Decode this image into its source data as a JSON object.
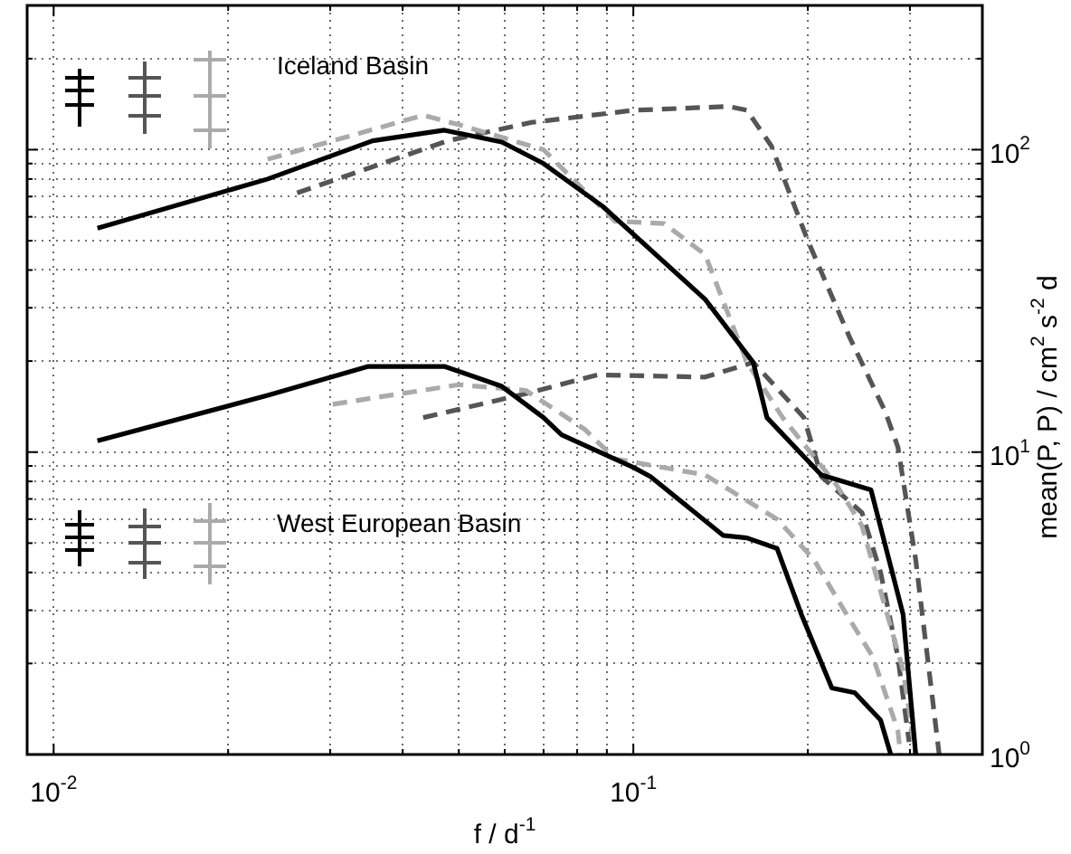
{
  "chart_data": {
    "type": "line",
    "xlabel": "f / d$^{-1}$",
    "ylabel": "mean(P, P) / cm$^{2}$ s$^{-2}$ d",
    "log": "xy",
    "grid": true,
    "legend": false,
    "xlim": [
      0.009,
      0.4
    ],
    "ylim": [
      1,
      300
    ],
    "xticks": [
      {
        "value": 0.01,
        "label": "10$^{-2}$"
      },
      {
        "value": 0.02,
        "label": null
      },
      {
        "value": 0.03,
        "label": null
      },
      {
        "value": 0.04,
        "label": null
      },
      {
        "value": 0.05,
        "label": null
      },
      {
        "value": 0.06,
        "label": null
      },
      {
        "value": 0.07,
        "label": null
      },
      {
        "value": 0.08,
        "label": null
      },
      {
        "value": 0.09,
        "label": null
      },
      {
        "value": 0.1,
        "label": "10$^{-1}$"
      },
      {
        "value": 0.2,
        "label": null
      },
      {
        "value": 0.3,
        "label": null
      }
    ],
    "yticks": [
      {
        "value": 1,
        "label": "10$^{0}$"
      },
      {
        "value": 2,
        "label": null
      },
      {
        "value": 3,
        "label": null
      },
      {
        "value": 4,
        "label": null
      },
      {
        "value": 5,
        "label": null
      },
      {
        "value": 6,
        "label": null
      },
      {
        "value": 7,
        "label": null
      },
      {
        "value": 8,
        "label": null
      },
      {
        "value": 9,
        "label": null
      },
      {
        "value": 10,
        "label": "10$^{1}$"
      },
      {
        "value": 20,
        "label": null
      },
      {
        "value": 30,
        "label": null
      },
      {
        "value": 40,
        "label": null
      },
      {
        "value": 50,
        "label": null
      },
      {
        "value": 60,
        "label": null
      },
      {
        "value": 70,
        "label": null
      },
      {
        "value": 80,
        "label": null
      },
      {
        "value": 90,
        "label": null
      },
      {
        "value": 100,
        "label": "10$^{2}$"
      },
      {
        "value": 200,
        "label": null
      }
    ],
    "series": [
      {
        "color": "#000000",
        "line_style": "solid",
        "x": [
          0.0119,
          0.0234,
          0.0355,
          0.0472,
          0.0593,
          0.07,
          0.0885,
          0.133,
          0.161,
          0.17,
          0.211,
          0.257,
          0.292,
          0.307
        ],
        "values": [
          55,
          80,
          107,
          116,
          106,
          90,
          65,
          32,
          19.8,
          13,
          8.4,
          7.5,
          2.9,
          1
        ]
      },
      {
        "color": "#aaaaaa",
        "line_style": "dashed",
        "x": [
          0.0234,
          0.0434,
          0.05,
          0.07,
          0.093,
          0.113,
          0.133,
          0.157,
          0.181,
          0.224,
          0.248,
          0.292,
          0.307
        ],
        "values": [
          93,
          130,
          121,
          100,
          58,
          57,
          45,
          19.8,
          13,
          7.8,
          5.7,
          1.9,
          1
        ]
      },
      {
        "color": "#555555",
        "line_style": "dashed",
        "x": [
          0.0263,
          0.0478,
          0.0665,
          0.1,
          0.146,
          0.157,
          0.173,
          0.2,
          0.236,
          0.272,
          0.286,
          0.307,
          0.337
        ],
        "values": [
          72,
          107,
          123,
          135,
          139,
          135,
          103,
          50,
          24,
          13.6,
          10.4,
          4.4,
          1
        ]
      },
      {
        "color": "#000000",
        "line_style": "solid",
        "x": [
          0.0119,
          0.0234,
          0.0349,
          0.0472,
          0.0593,
          0.07,
          0.0752,
          0.1,
          0.107,
          0.143,
          0.157,
          0.177,
          0.195,
          0.22,
          0.241,
          0.267,
          0.278
        ],
        "values": [
          10.9,
          15.4,
          19.2,
          19.2,
          16.5,
          13,
          11.4,
          8.9,
          8.3,
          5.3,
          5.2,
          4.8,
          2.9,
          1.66,
          1.6,
          1.3,
          1
        ]
      },
      {
        "color": "#aaaaaa",
        "line_style": "dashed",
        "x": [
          0.0303,
          0.05,
          0.0652,
          0.0824,
          0.093,
          0.133,
          0.177,
          0.205,
          0.236,
          0.259,
          0.286,
          0.289
        ],
        "values": [
          14.4,
          16.7,
          16,
          11.9,
          9.5,
          8.4,
          6,
          4.4,
          2.8,
          2.1,
          1.2,
          1
        ]
      },
      {
        "color": "#555555",
        "line_style": "dashed",
        "x": [
          0.0434,
          0.0652,
          0.0867,
          0.133,
          0.161,
          0.197,
          0.211,
          0.248,
          0.267,
          0.286,
          0.299
        ],
        "values": [
          13,
          15.6,
          18,
          17.7,
          19.8,
          13,
          8.3,
          6.3,
          4,
          2.1,
          1.1
        ]
      }
    ],
    "annotations": [
      "Iceland Basin",
      "West European Basin"
    ]
  }
}
